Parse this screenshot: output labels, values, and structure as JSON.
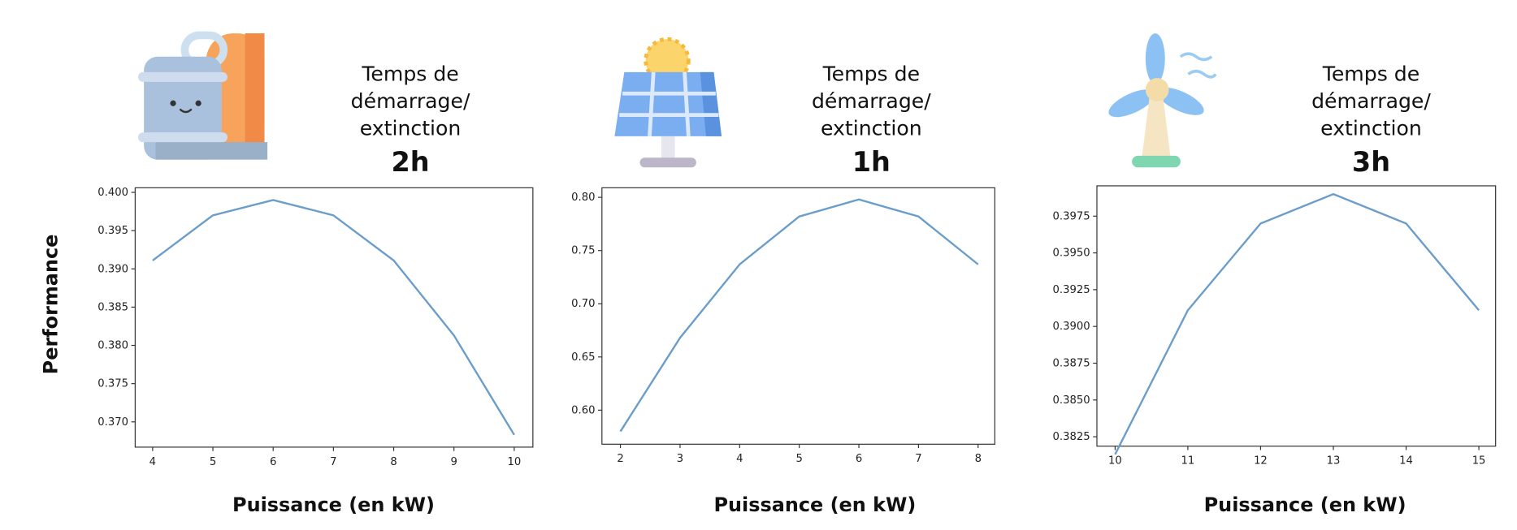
{
  "chart_data": [
    {
      "type": "line",
      "subtitle": [
        "Temps de",
        "démarrage/",
        "extinction"
      ],
      "title": "2h",
      "ylabel": "Performance",
      "xlabel": "Puissance (en kW)",
      "color": "#6b9dcb",
      "x": [
        4,
        5,
        6,
        7,
        8,
        9,
        10
      ],
      "values": [
        0.3911,
        0.397,
        0.399,
        0.397,
        0.3911,
        0.3813,
        0.3683
      ],
      "xlim": [
        3.71,
        10.31
      ],
      "xticks": [
        4,
        5,
        6,
        7,
        8,
        9,
        10
      ],
      "ylim": [
        0.3667,
        0.4006
      ],
      "yticks": [
        {
          "value": 0.37,
          "label": "0.370"
        },
        0.375,
        {
          "value": 0.38,
          "label": "0.380"
        },
        0.385,
        {
          "value": 0.39,
          "label": "0.390"
        },
        0.395,
        {
          "value": 0.4,
          "label": "0.400"
        }
      ]
    },
    {
      "type": "line",
      "subtitle": [
        "Temps de",
        "démarrage/",
        "extinction"
      ],
      "title": "1h",
      "xlabel": "Puissance (en kW)",
      "color": "#6b9dcb",
      "x": [
        2,
        3,
        4,
        5,
        6,
        7,
        8
      ],
      "values": [
        0.58,
        0.668,
        0.737,
        0.782,
        0.798,
        0.782,
        0.737
      ],
      "xlim": [
        1.69,
        8.28
      ],
      "xticks": [
        2,
        3,
        4,
        5,
        6,
        7,
        8
      ],
      "ylim": [
        0.568,
        0.809
      ],
      "yticks": [
        {
          "value": 0.6,
          "label": "0.60"
        },
        0.65,
        {
          "value": 0.7,
          "label": "0.70"
        },
        0.75,
        {
          "value": 0.8,
          "label": "0.80"
        }
      ]
    },
    {
      "type": "line",
      "subtitle": [
        "Temps de",
        "démarrage/",
        "extinction"
      ],
      "title": "3h",
      "xlabel": "Puissance (en kW)",
      "color": "#6b9dcb",
      "x": [
        10,
        11,
        12,
        13,
        14,
        15
      ],
      "values": [
        0.3813,
        0.3911,
        0.397,
        0.399,
        0.397,
        0.3911
      ],
      "xlim": [
        9.75,
        15.23
      ],
      "xticks": [
        10,
        11,
        12,
        13,
        14,
        15
      ],
      "ylim": [
        0.38186,
        0.39956
      ],
      "yticks": [
        0.3825,
        {
          "value": 0.385,
          "label": "0.3850"
        },
        0.3875,
        {
          "value": 0.39,
          "label": "0.3900"
        },
        0.3925,
        {
          "value": 0.395,
          "label": "0.3950"
        },
        0.3975
      ]
    }
  ]
}
